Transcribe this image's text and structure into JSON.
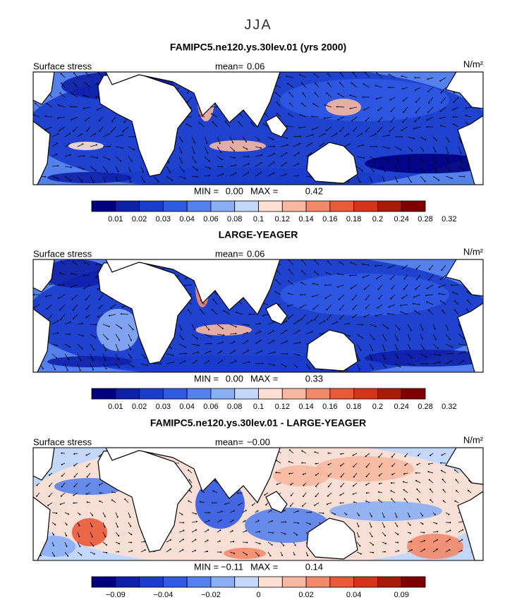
{
  "title": "JJA",
  "panels": [
    {
      "title": "FAMIPC5.ne120.ys.30lev.01 (yrs 2000)",
      "left_label": "Surface stress",
      "mean_label": "mean=",
      "mean": "0.06",
      "units": "N/m²",
      "min_label": "MIN =",
      "min": "0.00",
      "max_label": "MAX =",
      "max": "0.42",
      "colorbar": {
        "colors": [
          "#000080",
          "#0f20aa",
          "#1a3ccc",
          "#2f5ae4",
          "#5581ec",
          "#8aaef3",
          "#c2d7fa",
          "#fde0d2",
          "#f8b8a0",
          "#f28a6a",
          "#ea5a38",
          "#d6331a",
          "#aa1a08",
          "#7f0000"
        ],
        "labels": [
          "0.01",
          "0.02",
          "0.03",
          "0.04",
          "0.06",
          "0.08",
          "0.1",
          "0.12",
          "0.14",
          "0.16",
          "0.18",
          "0.2",
          "0.24",
          "0.28",
          "0.32"
        ]
      }
    },
    {
      "title": "LARGE-YEAGER",
      "left_label": "Surface stress",
      "mean_label": "mean=",
      "mean": "0.06",
      "units": "N/m²",
      "min_label": "MIN =",
      "min": "0.00",
      "max_label": "MAX =",
      "max": "0.33",
      "colorbar": {
        "colors": [
          "#000080",
          "#0f20aa",
          "#1a3ccc",
          "#2f5ae4",
          "#5581ec",
          "#8aaef3",
          "#c2d7fa",
          "#fde0d2",
          "#f8b8a0",
          "#f28a6a",
          "#ea5a38",
          "#d6331a",
          "#aa1a08",
          "#7f0000"
        ],
        "labels": [
          "0.01",
          "0.02",
          "0.03",
          "0.04",
          "0.06",
          "0.08",
          "0.1",
          "0.12",
          "0.14",
          "0.16",
          "0.18",
          "0.2",
          "0.24",
          "0.28",
          "0.32"
        ]
      }
    },
    {
      "title": "FAMIPC5.ne120.ys.30lev.01 - LARGE-YEAGER",
      "left_label": "Surface stress",
      "mean_label": "mean=",
      "mean": "−0.00",
      "units": "N/m²",
      "min_label": "MIN =",
      "min": "−0.11",
      "max_label": "MAX =",
      "max": "0.14",
      "colorbar": {
        "colors": [
          "#000080",
          "#0f20aa",
          "#1a3ccc",
          "#2f5ae4",
          "#5581ec",
          "#8aaef3",
          "#c2d7fa",
          "#fde0d2",
          "#f8b8a0",
          "#f28a6a",
          "#ea5a38",
          "#d6331a",
          "#aa1a08",
          "#7f0000"
        ],
        "labels": [
          "−0.09",
          null,
          "−0.04",
          null,
          "−0.02",
          null,
          "0",
          null,
          "0.02",
          null,
          "0.04",
          null,
          "0.09"
        ]
      }
    }
  ]
}
